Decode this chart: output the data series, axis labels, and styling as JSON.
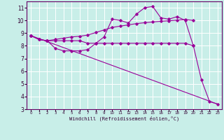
{
  "xlabel": "Windchill (Refroidissement éolien,°C)",
  "bg_color": "#c8eee8",
  "line_color": "#990099",
  "grid_color": "#ffffff",
  "xlim": [
    -0.5,
    23.5
  ],
  "ylim": [
    3,
    11.5
  ],
  "yticks": [
    3,
    4,
    5,
    6,
    7,
    8,
    9,
    10,
    11
  ],
  "xticks": [
    0,
    1,
    2,
    3,
    4,
    5,
    6,
    7,
    8,
    9,
    10,
    11,
    12,
    13,
    14,
    15,
    16,
    17,
    18,
    19,
    20,
    21,
    22,
    23
  ],
  "line1_x": [
    0,
    1,
    2,
    3,
    4,
    5,
    6,
    7,
    8,
    9,
    10,
    11,
    12,
    13,
    14,
    15,
    16,
    17,
    18,
    19,
    20
  ],
  "line1_y": [
    8.8,
    8.5,
    8.4,
    8.4,
    8.4,
    8.4,
    8.4,
    8.2,
    8.2,
    8.2,
    8.2,
    8.2,
    8.2,
    8.2,
    8.2,
    8.2,
    8.2,
    8.2,
    8.2,
    8.2,
    8.0
  ],
  "line2_x": [
    0,
    1,
    2,
    3,
    4,
    5,
    6,
    7,
    8,
    9,
    10,
    11,
    12,
    13,
    14,
    15,
    16,
    17,
    18,
    19,
    20,
    21,
    22,
    23
  ],
  "line2_y": [
    8.8,
    8.5,
    8.4,
    7.8,
    7.6,
    7.6,
    7.6,
    7.7,
    8.2,
    8.7,
    10.1,
    10.0,
    9.8,
    10.5,
    11.0,
    11.1,
    10.2,
    10.1,
    10.3,
    10.0,
    8.0,
    5.3,
    3.6,
    3.4
  ],
  "line3_x": [
    0,
    1,
    2,
    3,
    4,
    5,
    6,
    7,
    8,
    9,
    10,
    11,
    12,
    13,
    14,
    15,
    16,
    17,
    18,
    19,
    20
  ],
  "line3_y": [
    8.8,
    8.5,
    8.4,
    8.5,
    8.6,
    8.7,
    8.75,
    8.85,
    9.05,
    9.25,
    9.45,
    9.55,
    9.65,
    9.75,
    9.82,
    9.88,
    9.93,
    9.97,
    10.02,
    10.07,
    10.0
  ],
  "line4_x": [
    0,
    23
  ],
  "line4_y": [
    8.8,
    3.4
  ]
}
